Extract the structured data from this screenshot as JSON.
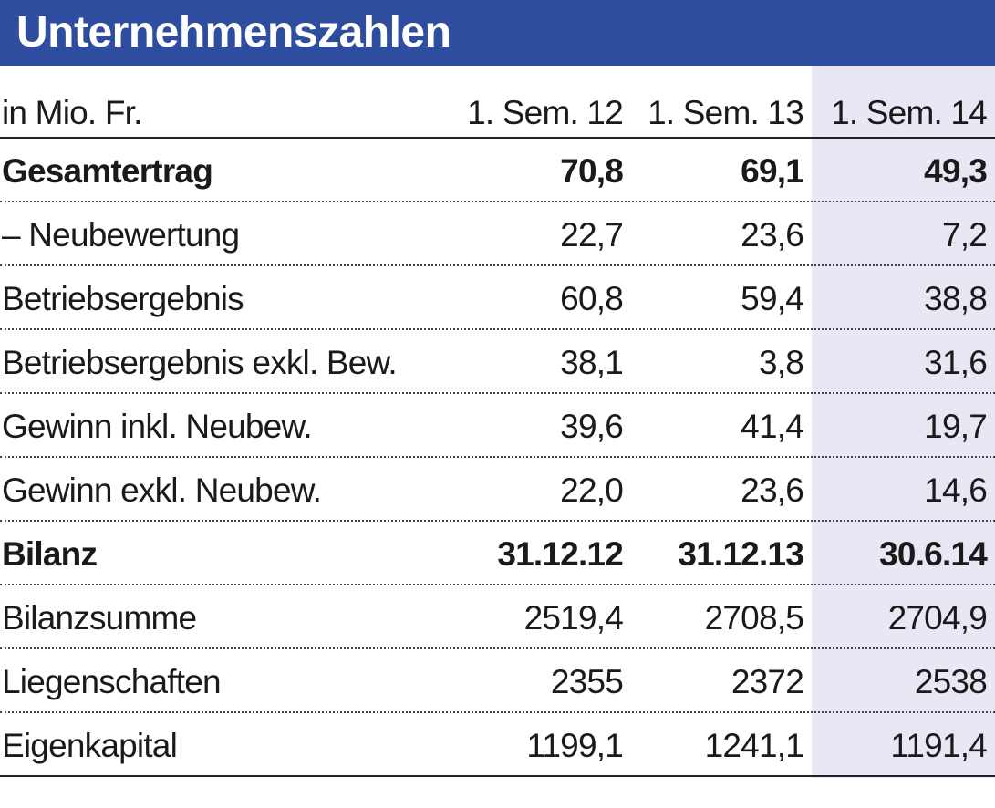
{
  "header": {
    "title": "Unternehmenszahlen"
  },
  "table": {
    "columns": [
      "in Mio. Fr.",
      "1. Sem. 12",
      "1. Sem. 13",
      "1. Sem. 14"
    ],
    "sections": [
      {
        "heading": [
          "Gesamtertrag",
          "70,8",
          "69,1",
          "49,3"
        ],
        "rows": [
          [
            "– Neubewertung",
            "22,7",
            "23,6",
            "7,2"
          ],
          [
            "Betriebsergebnis",
            "60,8",
            "59,4",
            "38,8"
          ],
          [
            "Betriebsergebnis exkl. Bew.",
            "38,1",
            "3,8",
            "31,6"
          ],
          [
            "Gewinn inkl. Neubew.",
            "39,6",
            "41,4",
            "19,7"
          ],
          [
            "Gewinn exkl. Neubew.",
            "22,0",
            "23,6",
            "14,6"
          ]
        ]
      },
      {
        "heading": [
          "Bilanz",
          "31.12.12",
          "31.12.13",
          "30.6.14"
        ],
        "rows": [
          [
            "Bilanzsumme",
            "2519,4",
            "2708,5",
            "2704,9"
          ],
          [
            "Liegenschaften",
            "2355",
            "2372",
            "2538"
          ],
          [
            "Eigenkapital",
            "1199,1",
            "1241,1",
            "1191,4"
          ]
        ]
      }
    ]
  }
}
